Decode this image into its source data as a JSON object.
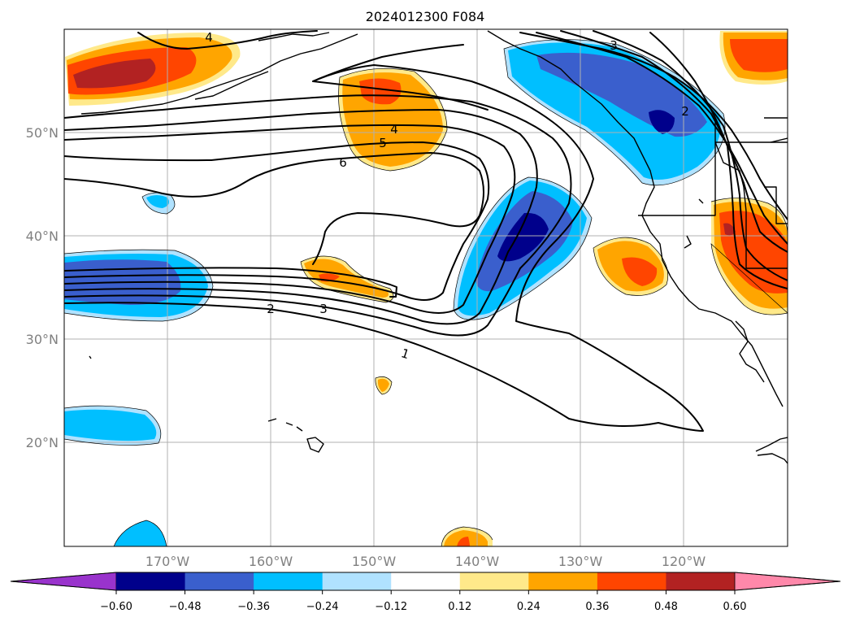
{
  "title": "2024012300 F084",
  "lon_labels": [
    "170°W",
    "160°W",
    "150°W",
    "140°W",
    "130°W",
    "120°W"
  ],
  "lat_labels": [
    "50°N",
    "40°N",
    "30°N",
    "20°N"
  ],
  "map_extent": {
    "lon": [
      -180,
      -110
    ],
    "lat": [
      10,
      59
    ]
  },
  "contour_labels": [
    "1",
    "2",
    "3",
    "4",
    "5",
    "6",
    "2",
    "3",
    "4"
  ],
  "colorbar": {
    "ticks": [
      "−0.60",
      "−0.48",
      "−0.36",
      "−0.24",
      "−0.12",
      "0.12",
      "0.24",
      "0.36",
      "0.48",
      "0.60"
    ],
    "colors": [
      "#9933cc",
      "#00008b",
      "#3a5fcd",
      "#00bfff",
      "#b0e2ff",
      "#ffffff",
      "#ffe98a",
      "#ffa500",
      "#ff4500",
      "#b22222",
      "#ff88aa"
    ],
    "extend": "both"
  }
}
